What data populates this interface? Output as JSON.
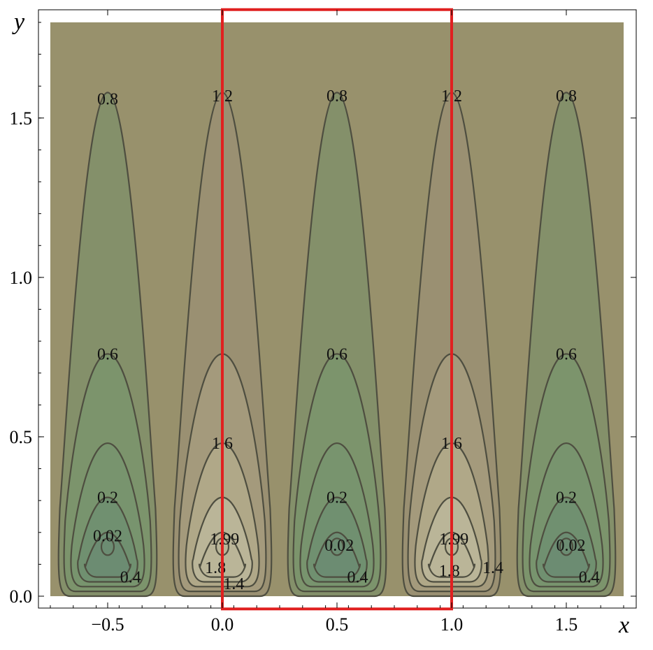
{
  "chart_data": {
    "type": "contour",
    "xlabel": "x",
    "ylabel": "y",
    "xlim": [
      -0.75,
      1.75
    ],
    "ylim": [
      0.0,
      1.8
    ],
    "x_ticks": [
      {
        "value": -0.5,
        "label": "−0.5"
      },
      {
        "value": 0.0,
        "label": "0.0"
      },
      {
        "value": 0.5,
        "label": "0.5"
      },
      {
        "value": 1.0,
        "label": "1.0"
      },
      {
        "value": 1.5,
        "label": "1.5"
      }
    ],
    "y_ticks": [
      {
        "value": 0.0,
        "label": "0.0"
      },
      {
        "value": 0.5,
        "label": "0.5"
      },
      {
        "value": 1.0,
        "label": "1.0"
      },
      {
        "value": 1.5,
        "label": "1.5"
      }
    ],
    "wells": [
      {
        "center_x": -0.5,
        "kind": "low"
      },
      {
        "center_x": 0.0,
        "kind": "high"
      },
      {
        "center_x": 0.5,
        "kind": "low"
      },
      {
        "center_x": 1.0,
        "kind": "high"
      },
      {
        "center_x": 1.5,
        "kind": "low"
      }
    ],
    "low_contour_levels": [
      {
        "top_y": 1.58,
        "color": "#84906a"
      },
      {
        "top_y": 0.76,
        "color": "#7c946c"
      },
      {
        "top_y": 0.48,
        "color": "#78946e"
      },
      {
        "top_y": 0.31,
        "color": "#709070"
      },
      {
        "top_y": 0.2,
        "color": "#6c8c72"
      }
    ],
    "high_contour_levels": [
      {
        "top_y": 1.58,
        "color": "#9a9072"
      },
      {
        "top_y": 0.76,
        "color": "#a49a7c"
      },
      {
        "top_y": 0.48,
        "color": "#b0a888"
      },
      {
        "top_y": 0.31,
        "color": "#bab598"
      },
      {
        "top_y": 0.2,
        "color": "#bab598"
      }
    ],
    "background_color": "#98916c",
    "contour_line_color": "#4e4e40",
    "contour_labels": [
      {
        "x": -0.5,
        "y": 1.56,
        "text": "0.8"
      },
      {
        "x": -0.5,
        "y": 0.76,
        "text": "0.6"
      },
      {
        "x": -0.5,
        "y": 0.31,
        "text": "0.2"
      },
      {
        "x": -0.5,
        "y": 0.19,
        "text": "0.02"
      },
      {
        "x": -0.4,
        "y": 0.06,
        "text": "0.4"
      },
      {
        "x": 0.0,
        "y": 1.57,
        "text": "1.2"
      },
      {
        "x": 0.0,
        "y": 0.48,
        "text": "1.6"
      },
      {
        "x": 0.01,
        "y": 0.18,
        "text": "1.99"
      },
      {
        "x": -0.03,
        "y": 0.09,
        "text": "1.8"
      },
      {
        "x": 0.05,
        "y": 0.04,
        "text": "1.4"
      },
      {
        "x": 0.5,
        "y": 1.57,
        "text": "0.8"
      },
      {
        "x": 0.5,
        "y": 0.76,
        "text": "0.6"
      },
      {
        "x": 0.5,
        "y": 0.31,
        "text": "0.2"
      },
      {
        "x": 0.51,
        "y": 0.16,
        "text": "0.02"
      },
      {
        "x": 0.59,
        "y": 0.06,
        "text": "0.4"
      },
      {
        "x": 1.0,
        "y": 1.57,
        "text": "1.2"
      },
      {
        "x": 1.0,
        "y": 0.48,
        "text": "1.6"
      },
      {
        "x": 1.01,
        "y": 0.18,
        "text": "1.99"
      },
      {
        "x": 0.99,
        "y": 0.08,
        "text": "1.8"
      },
      {
        "x": 1.18,
        "y": 0.09,
        "text": "1.4"
      },
      {
        "x": 1.5,
        "y": 0.76,
        "text": "0.6"
      },
      {
        "x": 1.5,
        "y": 1.57,
        "text": "0.8"
      },
      {
        "x": 1.5,
        "y": 0.31,
        "text": "0.2"
      },
      {
        "x": 1.52,
        "y": 0.16,
        "text": "0.02"
      },
      {
        "x": 1.6,
        "y": 0.06,
        "text": "0.4"
      }
    ],
    "highlight_rectangle": {
      "x0": 0.0,
      "x1": 1.0,
      "y0": -0.04,
      "y1": 1.84,
      "color": "#e02020"
    },
    "grid": false
  }
}
